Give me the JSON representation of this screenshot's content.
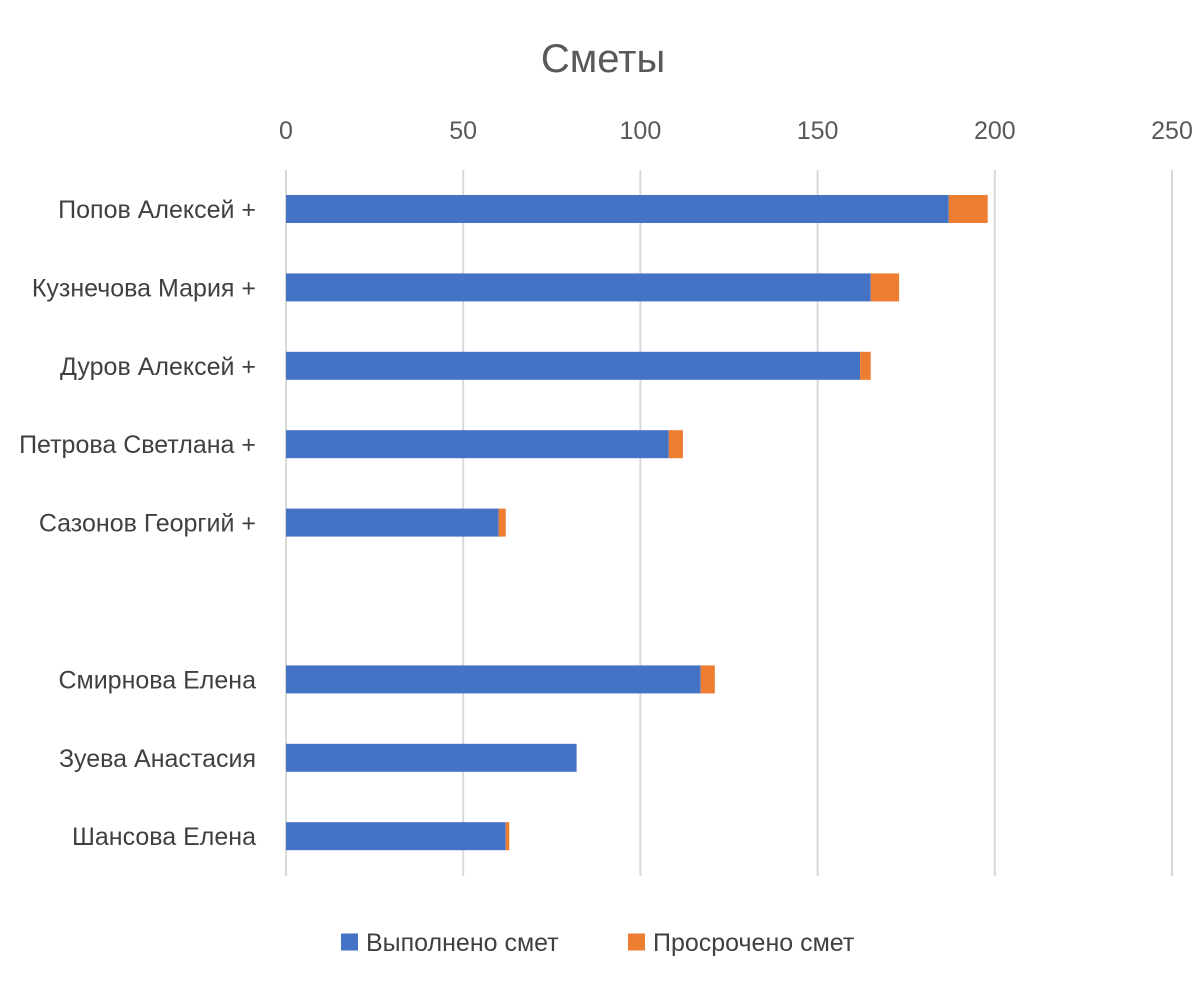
{
  "chart_data": {
    "type": "bar",
    "orientation": "horizontal",
    "stacked": true,
    "title": "Сметы",
    "xlabel": "",
    "ylabel": "",
    "xlim": [
      0,
      250
    ],
    "x_ticks": [
      0,
      50,
      100,
      150,
      200,
      250
    ],
    "x_axis_position": "top",
    "grid": true,
    "legend_position": "bottom",
    "categories": [
      "Попов Алексей +",
      "Кузнечова Мария +",
      "Дуров Алексей +",
      "Петрова Светлана +",
      "Сазонов Георгий +",
      "",
      "Смирнова Елена",
      "Зуева Анастасия",
      "Шансова Елена"
    ],
    "series": [
      {
        "name": "Выполнено смет",
        "color": "#4472C4",
        "values": [
          187,
          165,
          162,
          108,
          60,
          null,
          117,
          82,
          62
        ]
      },
      {
        "name": "Просрочено смет",
        "color": "#ED7D31",
        "values": [
          11,
          8,
          3,
          4,
          2,
          null,
          4,
          0,
          1
        ]
      }
    ]
  }
}
